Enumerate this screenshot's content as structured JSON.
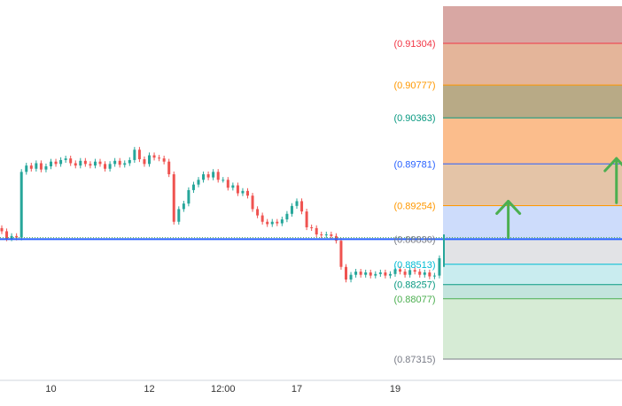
{
  "colors": {
    "background": "#ffffff",
    "candle_up": "#26a69a",
    "candle_down": "#ef5350",
    "horizontal_line": "#2962ff",
    "arrow": "#4caf50",
    "dotted_line": "#4caf50",
    "axis_border": "#d1d4dc"
  },
  "fib_levels": [
    {
      "label": "(0.91304)",
      "value": 0.91304,
      "color": "#f23645",
      "zone_color": "#d8a7a3"
    },
    {
      "label": "(0.90777)",
      "value": 0.90777,
      "color": "#ff9800",
      "zone_color": "#e4b59a"
    },
    {
      "label": "(0.90363)",
      "value": 0.90363,
      "color": "#089981",
      "zone_color": "#b8aa86"
    },
    {
      "label": "(0.89781)",
      "value": 0.89781,
      "color": "#2962ff",
      "zone_color": "#fbbd8c"
    },
    {
      "label": "(0.89254)",
      "value": 0.89254,
      "color": "#ff9800",
      "zone_color": "#e4c4a7"
    },
    {
      "label": "(0.88830)",
      "value": 0.8883,
      "color": "#787b86",
      "zone_color": "#cddcfb"
    },
    {
      "label": "(0.88513)",
      "value": 0.88513,
      "color": "#00bcd4",
      "zone_color": "#e2e3e6"
    },
    {
      "label": "(0.88257)",
      "value": 0.88257,
      "color": "#089981",
      "zone_color": "#c9ecef"
    },
    {
      "label": "(0.88077)",
      "value": 0.88077,
      "color": "#4caf50",
      "zone_color": "#c3e4dd"
    },
    {
      "label": "(0.87315)",
      "value": 0.87315,
      "color": "#787b86",
      "zone_color": "#d6ebd5"
    }
  ],
  "x_axis": {
    "ticks": [
      {
        "label": "10",
        "index": 10
      },
      {
        "label": "12",
        "index": 30
      },
      {
        "label": "12:00",
        "index": 45
      },
      {
        "label": "17",
        "index": 60
      },
      {
        "label": "19",
        "index": 80
      }
    ]
  },
  "chart_data": {
    "type": "candlestick",
    "horizontal_line_value": 0.8883,
    "dotted_line_value": 0.8885,
    "arrows": [
      {
        "bar": 103,
        "from": 0.8885,
        "to": 0.8931
      },
      {
        "bar": 125,
        "from": 0.8929,
        "to": 0.8985
      }
    ],
    "closes": [
      0.8893,
      0.8884,
      0.8887,
      0.8885,
      0.8968,
      0.8976,
      0.8972,
      0.8979,
      0.8971,
      0.8975,
      0.8981,
      0.8978,
      0.8983,
      0.8985,
      0.8979,
      0.8976,
      0.8982,
      0.8978,
      0.8976,
      0.8981,
      0.8978,
      0.8972,
      0.8978,
      0.8982,
      0.8977,
      0.8979,
      0.8983,
      0.8996,
      0.8984,
      0.8978,
      0.8989,
      0.8986,
      0.8985,
      0.8981,
      0.8965,
      0.8905,
      0.8921,
      0.8928,
      0.8945,
      0.8952,
      0.8958,
      0.8965,
      0.8961,
      0.8968,
      0.8958,
      0.8958,
      0.8948,
      0.8951,
      0.8941,
      0.8944,
      0.8938,
      0.8921,
      0.8913,
      0.8905,
      0.8902,
      0.8905,
      0.8903,
      0.8908,
      0.8915,
      0.8925,
      0.8931,
      0.8918,
      0.8898,
      0.8897,
      0.8889,
      0.8888,
      0.8889,
      0.8887,
      0.8881,
      0.8848,
      0.8832,
      0.8838,
      0.8842,
      0.8838,
      0.8841,
      0.8837,
      0.8839,
      0.8841,
      0.8837,
      0.8839,
      0.8845,
      0.8842,
      0.8838,
      0.8844,
      0.8842,
      0.8838,
      0.8841,
      0.8836,
      0.8837,
      0.8859
    ]
  }
}
